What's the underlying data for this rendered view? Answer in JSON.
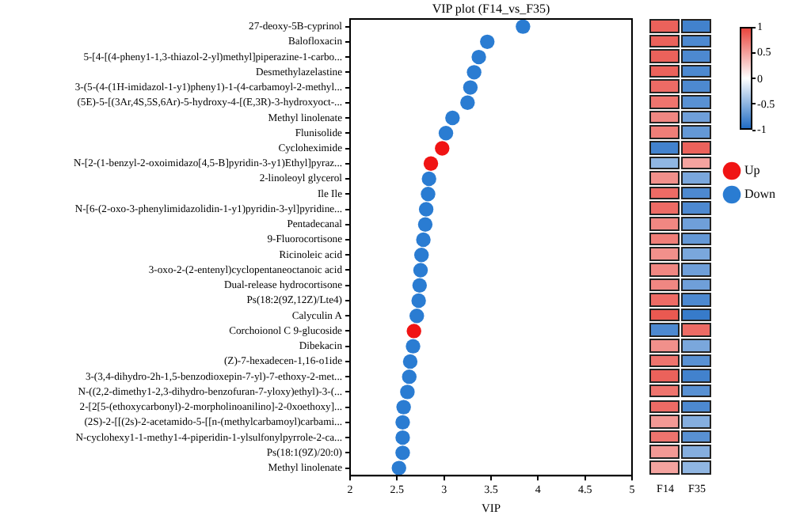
{
  "chart_data": [
    {
      "type": "scatter",
      "orientation": "horizontal",
      "title": "VIP plot (F14_vs_F35)",
      "xlabel": "VIP",
      "categories": [
        "27-deoxy-5B-cyprinol",
        "Balofloxacin",
        "5-[4-[(4-pheny1-1,3-thiazol-2-yl)methyl]piperazine-1-carbo...",
        "Desmethylazelastine",
        "3-(5-(4-(1H-imidazol-1-y1)pheny1)-1-(4-carbamoyl-2-methyl...",
        "(5E)-5-[(3Ar,4S,5S,6Ar)-5-hydroxy-4-[(E,3R)-3-hydroxyoct-...",
        "Methyl linolenate",
        "Flunisolide",
        "Cycloheximide",
        "N-[2-(1-benzyl-2-oxoimidazo[4,5-B]pyridin-3-y1)Ethyl]pyraz...",
        "2-linoleoyl glycerol",
        "Ile Ile",
        "N-[6-(2-oxo-3-phenylimidazolidin-1-y1)pyridin-3-yl]pyridine...",
        "Pentadecanal",
        "9-Fluorocortisone",
        "Ricinoleic acid",
        "3-oxo-2-(2-entenyl)cyclopentaneoctanoic acid",
        "Dual-release hydrocortisone",
        "Ps(18:2(9Z,12Z)/Lte4)",
        "Calyculin A",
        "Corchoionol C 9-glucoside",
        "Dibekacin",
        "(Z)-7-hexadecen-1,16-o1ide",
        "3-(3,4-dihydro-2h-1,5-benzodioxepin-7-yl)-7-ethoxy-2-met...",
        "N-((2,2-dimethy1-2,3-dihydro-benzofuran-7-yloxy)ethyl)-3-(...",
        "2-[2[5-(ethoxycarbonyl)-2-morpholinoanilino]-2-0xoethoxy]...",
        "(2S)-2-[[(2s)-2-acetamido-5-[[n-(methylcarbamoyl)carbami...",
        "N-cyclohexy1-1-methy1-4-piperidin-1-ylsulfonylpyrrole-2-ca...",
        "Ps(18:1(9Z)/20:0)",
        "Methyl linolenate"
      ],
      "xlim": [
        2,
        5
      ],
      "xticks": [
        2,
        2.5,
        3,
        3.5,
        4,
        4.5,
        5
      ],
      "series": [
        {
          "name": "Up",
          "color": "#f01414",
          "values": [
            null,
            null,
            null,
            null,
            null,
            null,
            null,
            null,
            2.98,
            2.86,
            null,
            null,
            null,
            null,
            null,
            null,
            null,
            null,
            null,
            null,
            2.68,
            null,
            null,
            null,
            null,
            null,
            null,
            null,
            null,
            null
          ]
        },
        {
          "name": "Down",
          "color": "#2a7cd2",
          "values": [
            3.84,
            3.46,
            3.37,
            3.32,
            3.28,
            3.25,
            3.09,
            3.02,
            null,
            null,
            2.84,
            2.83,
            2.81,
            2.8,
            2.78,
            2.76,
            2.75,
            2.74,
            2.73,
            2.71,
            null,
            2.67,
            2.64,
            2.63,
            2.61,
            2.57,
            2.56,
            2.56,
            2.56,
            2.52
          ]
        }
      ],
      "legend": "right",
      "marker": "circle"
    },
    {
      "type": "heatmap",
      "categories": [
        "F14",
        "F35"
      ],
      "y_categories": [
        null,
        null,
        null,
        null,
        null,
        null,
        null,
        null,
        null,
        null,
        null,
        null,
        null,
        null,
        null,
        null,
        null,
        null,
        null,
        null,
        null,
        null,
        null,
        null,
        null,
        null,
        null,
        null,
        null,
        null
      ],
      "cells": [
        [
          0.85,
          -0.85
        ],
        [
          0.85,
          -0.8
        ],
        [
          0.85,
          -0.8
        ],
        [
          0.85,
          -0.8
        ],
        [
          0.8,
          -0.8
        ],
        [
          0.75,
          -0.75
        ],
        [
          0.65,
          -0.65
        ],
        [
          0.7,
          -0.7
        ],
        [
          -0.85,
          0.85
        ],
        [
          -0.5,
          0.5
        ],
        [
          0.6,
          -0.6
        ],
        [
          0.8,
          -0.8
        ],
        [
          0.8,
          -0.8
        ],
        [
          0.65,
          -0.65
        ],
        [
          0.7,
          -0.7
        ],
        [
          0.6,
          -0.6
        ],
        [
          0.65,
          -0.65
        ],
        [
          0.65,
          -0.65
        ],
        [
          0.8,
          -0.8
        ],
        [
          0.9,
          -0.9
        ],
        [
          -0.8,
          0.8
        ],
        [
          0.6,
          -0.6
        ],
        [
          0.75,
          -0.75
        ],
        [
          0.85,
          -0.85
        ],
        [
          0.75,
          -0.75
        ],
        [
          0.8,
          -0.8
        ],
        [
          0.55,
          -0.55
        ],
        [
          0.75,
          -0.75
        ],
        [
          0.55,
          -0.55
        ],
        [
          0.5,
          -0.5
        ]
      ],
      "clim": [
        -1,
        1
      ],
      "cticks": [
        -1,
        -0.5,
        0,
        0.5,
        1
      ],
      "tick_labels": "x"
    }
  ]
}
